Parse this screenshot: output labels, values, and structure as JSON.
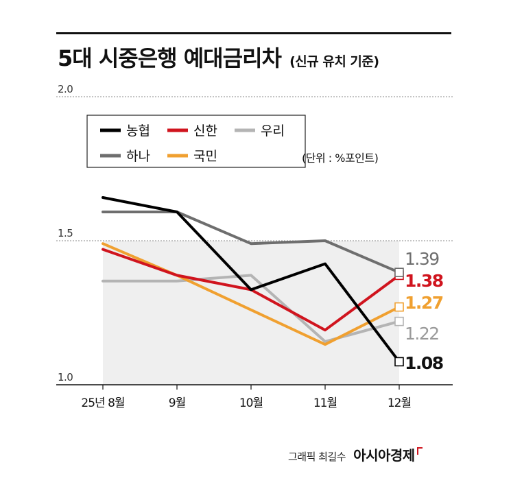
{
  "title": "5대 시중은행 예대금리차",
  "subtitle": "(신규 유치 기준)",
  "unit_note": "(단위 : %포인트)",
  "credit": "그래픽 최길수",
  "brand": "아시아경제",
  "chart_data": {
    "type": "line",
    "categories": [
      "25년 8월",
      "9월",
      "10월",
      "11월",
      "12월"
    ],
    "ylim": [
      1.0,
      2.0
    ],
    "yticks": [
      "1.0",
      "1.5",
      "2.0"
    ],
    "grid": true,
    "legend_position": "top-left",
    "series": [
      {
        "name": "농협",
        "color": "#000000",
        "values": [
          1.65,
          1.6,
          1.33,
          1.42,
          1.08
        ],
        "end_label": "1.08",
        "end_label_color": "#111111"
      },
      {
        "name": "신한",
        "color": "#d0141e",
        "values": [
          1.47,
          1.38,
          1.33,
          1.19,
          1.38
        ],
        "end_label": "1.38",
        "end_label_color": "#d0141e"
      },
      {
        "name": "우리",
        "color": "#b4b4b4",
        "values": [
          1.36,
          1.36,
          1.38,
          1.15,
          1.22
        ],
        "end_label": "1.22",
        "end_label_color": "#9a9a9a"
      },
      {
        "name": "하나",
        "color": "#6e6e6e",
        "values": [
          1.6,
          1.6,
          1.49,
          1.5,
          1.39
        ],
        "end_label": "1.39",
        "end_label_color": "#6e6e6e"
      },
      {
        "name": "국민",
        "color": "#f0a030",
        "values": [
          1.49,
          1.38,
          1.26,
          1.14,
          1.27
        ],
        "end_label": "1.27",
        "end_label_color": "#f0a030"
      }
    ]
  }
}
